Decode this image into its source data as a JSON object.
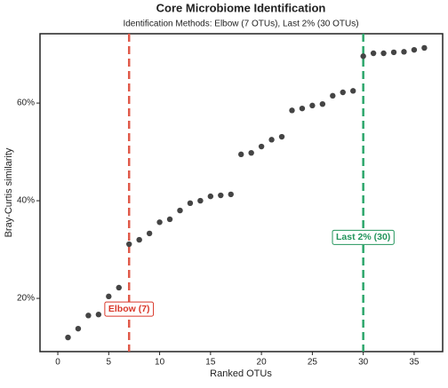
{
  "chart_data": {
    "type": "scatter",
    "title": "Core Microbiome Identification",
    "subtitle": "Identification Methods: Elbow (7 OTUs), Last 2% (30 OTUs)",
    "x_label": "Ranked OTUs",
    "y_label": "Bray-Curtis similarity",
    "x": [
      1,
      2,
      3,
      4,
      5,
      6,
      7,
      8,
      9,
      10,
      11,
      12,
      13,
      14,
      15,
      16,
      17,
      18,
      19,
      20,
      21,
      22,
      23,
      24,
      25,
      26,
      27,
      28,
      29,
      30,
      31,
      32,
      33,
      34,
      35,
      36
    ],
    "values": [
      12.0,
      13.8,
      16.5,
      16.7,
      20.4,
      22.2,
      31.1,
      32.0,
      33.3,
      35.6,
      36.2,
      38.0,
      39.5,
      40.0,
      40.9,
      41.1,
      41.3,
      49.5,
      49.8,
      51.1,
      52.5,
      53.1,
      58.5,
      58.9,
      59.5,
      59.8,
      61.5,
      62.2,
      62.5,
      69.6,
      70.2,
      70.2,
      70.4,
      70.5,
      70.9,
      71.3
    ],
    "color": "#444444",
    "xlim": [
      -1.75,
      37.8
    ],
    "ylim": [
      9.1,
      74.2
    ],
    "xticks": [
      0,
      5,
      10,
      15,
      20,
      25,
      30,
      35
    ],
    "yticks": [
      {
        "value": 20,
        "label": "20%"
      },
      {
        "value": 40,
        "label": "40%"
      },
      {
        "value": 60,
        "label": "60%"
      }
    ],
    "vlines": [
      {
        "x": 7,
        "color": "#e05a4a"
      },
      {
        "x": 30,
        "color": "#2ca66b"
      }
    ],
    "annotations": [
      {
        "text": "Elbow (7)",
        "x": 7,
        "y": 17.8,
        "color": "#d9382a"
      },
      {
        "text": "Last 2% (30)",
        "x": 30,
        "y": 32.5,
        "color": "#23955c"
      }
    ]
  }
}
